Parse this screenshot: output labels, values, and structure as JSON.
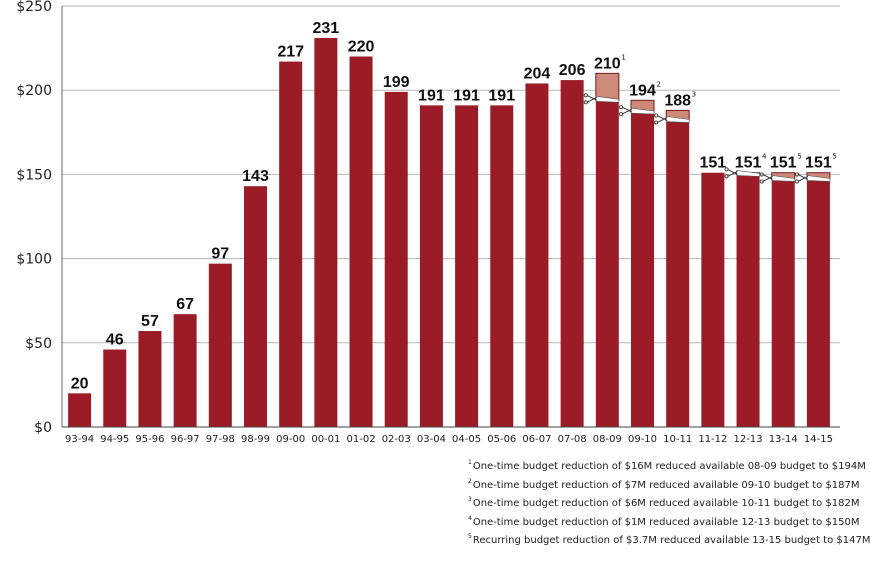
{
  "chart_data": {
    "type": "bar",
    "title": "",
    "xlabel": "",
    "ylabel": "",
    "ylim": [
      0,
      250
    ],
    "yticks": [
      0,
      50,
      100,
      150,
      200,
      250
    ],
    "ytick_labels": [
      "$0",
      "$50",
      "$100",
      "$150",
      "$200",
      "$250"
    ],
    "grid": true,
    "categories": [
      "93-94",
      "94-95",
      "95-96",
      "96-97",
      "97-98",
      "98-99",
      "09-00",
      "00-01",
      "01-02",
      "02-03",
      "03-04",
      "04-05",
      "05-06",
      "06-07",
      "07-08",
      "08-09",
      "09-10",
      "10-11",
      "11-12",
      "12-13",
      "13-14",
      "14-15"
    ],
    "values": [
      20,
      46,
      57,
      67,
      97,
      143,
      217,
      231,
      220,
      199,
      191,
      191,
      191,
      204,
      206,
      210,
      194,
      188,
      151,
      151,
      151,
      151
    ],
    "value_labels": [
      "20",
      "46",
      "57",
      "67",
      "97",
      "143",
      "217",
      "231",
      "220",
      "199",
      "191",
      "191",
      "191",
      "204",
      "206",
      "210",
      "194",
      "188",
      "151",
      "151",
      "151",
      "151"
    ],
    "label_superscripts": [
      "",
      "",
      "",
      "",
      "",
      "",
      "",
      "",
      "",
      "",
      "",
      "",
      "",
      "",
      "",
      "1",
      "2",
      "3",
      "",
      "4",
      "5",
      "5"
    ],
    "available_after_reduction": [
      null,
      null,
      null,
      null,
      null,
      null,
      null,
      null,
      null,
      null,
      null,
      null,
      null,
      null,
      null,
      194,
      187,
      182,
      null,
      150,
      147,
      147
    ],
    "series_colors": {
      "budget": "#9b1c26",
      "reduction": "#cd8a78"
    },
    "footnotes": [
      {
        "mark": "1",
        "text": "One-time budget reduction of $16M reduced available 08-09 budget to $194M"
      },
      {
        "mark": "2",
        "text": "One-time budget reduction of $7M reduced available 09-10 budget to $187M"
      },
      {
        "mark": "3",
        "text": "One-time budget reduction of $6M reduced available 10-11 budget to $182M"
      },
      {
        "mark": "4",
        "text": "One-time budget reduction of $1M reduced available 12-13 budget to $150M"
      },
      {
        "mark": "5",
        "text": "Recurring budget reduction of $3.7M reduced available 13-15 budget to $147M"
      }
    ]
  }
}
